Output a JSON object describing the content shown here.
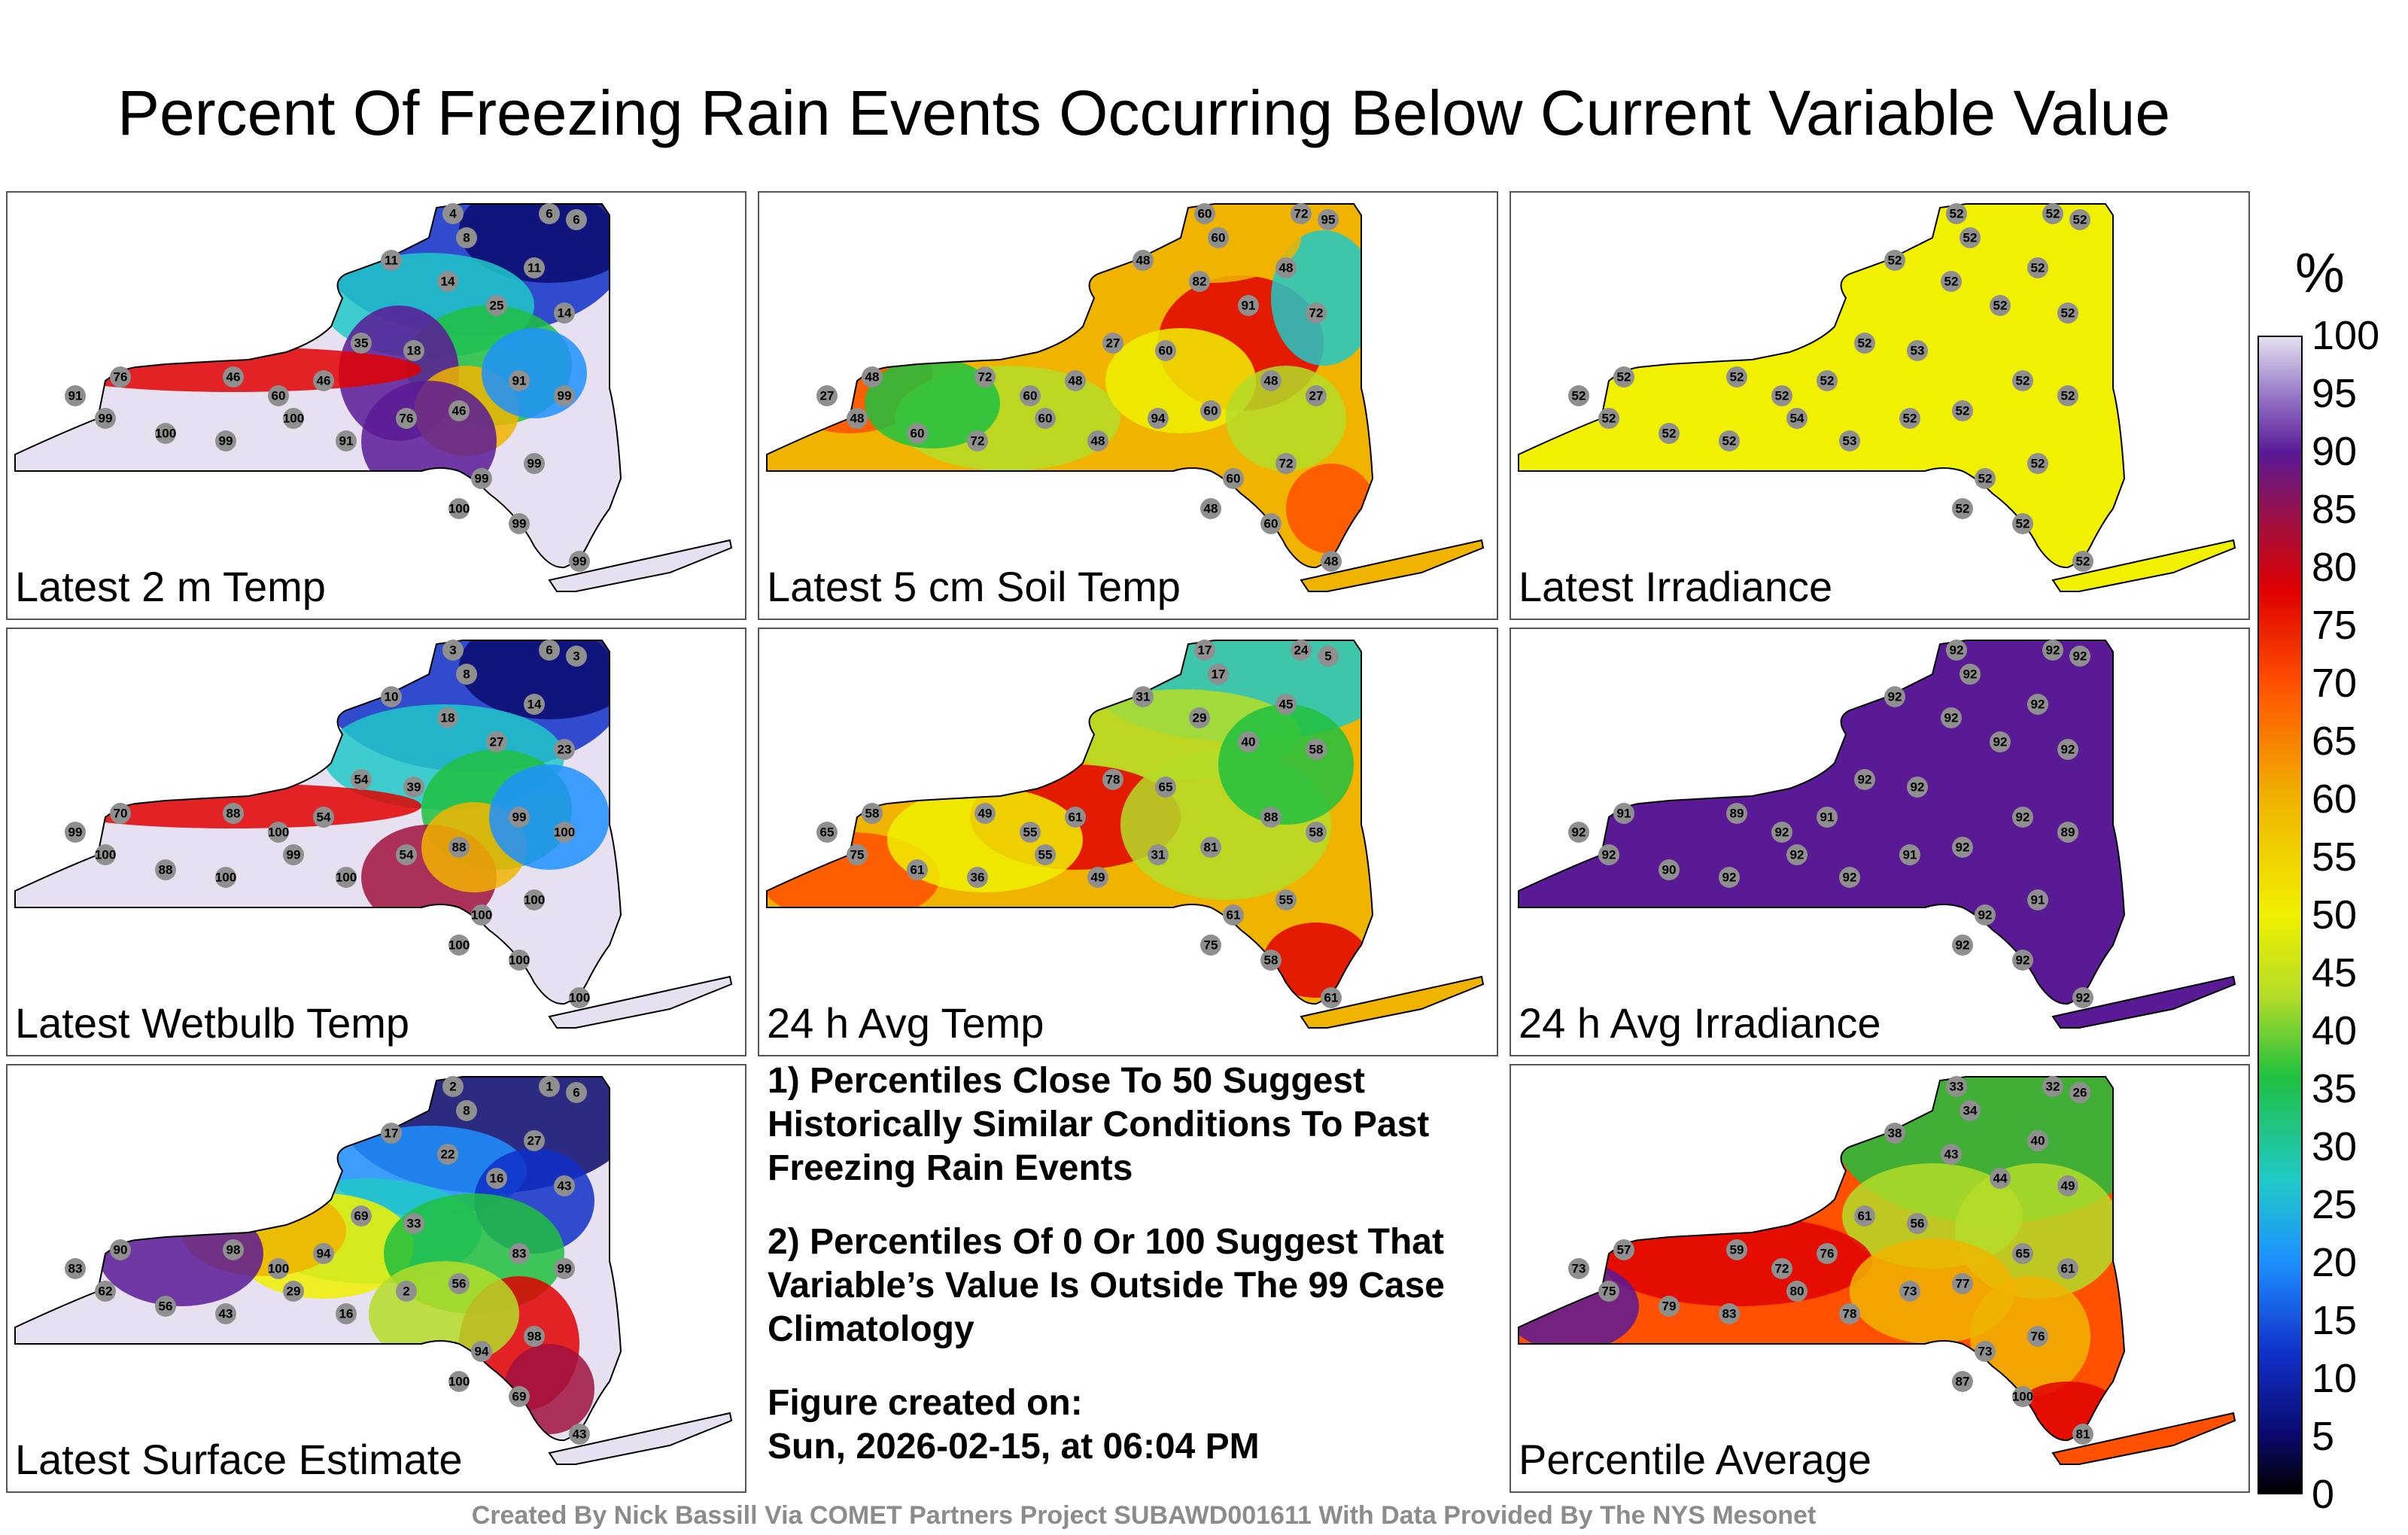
{
  "title": "Percent Of Freezing Rain Events Occurring Below Current Variable Value",
  "colorbar": {
    "unit": "%",
    "ticks": [
      "100",
      "95",
      "90",
      "85",
      "80",
      "75",
      "70",
      "65",
      "60",
      "55",
      "50",
      "45",
      "40",
      "35",
      "30",
      "25",
      "20",
      "15",
      "10",
      "5",
      "0"
    ],
    "range": [
      0,
      100
    ],
    "stops": [
      "#000000",
      "#0a0a6e",
      "#1030c8",
      "#1e90ff",
      "#20c8c8",
      "#20c040",
      "#b4dc28",
      "#f0f000",
      "#f0b400",
      "#ff5000",
      "#e00000",
      "#a01040",
      "#5a1a96",
      "#9678c8",
      "#e6e0f0"
    ]
  },
  "panels": [
    {
      "label": "Latest 2 m Temp",
      "scheme": "temp2m",
      "stations": [
        "4",
        "8",
        "6",
        "6",
        "11",
        "14",
        "25",
        "11",
        "14",
        "18",
        "35",
        "46",
        "60",
        "46",
        "76",
        "91",
        "99",
        "100",
        "99",
        "100",
        "91",
        "76",
        "46",
        "91",
        "99",
        "99",
        "99",
        "100",
        "99",
        "99"
      ]
    },
    {
      "label": "Latest 5 cm Soil Temp",
      "scheme": "soil",
      "stations": [
        "60",
        "60",
        "72",
        "95",
        "48",
        "82",
        "91",
        "48",
        "72",
        "60",
        "27",
        "48",
        "60",
        "72",
        "48",
        "27",
        "48",
        "60",
        "72",
        "60",
        "48",
        "94",
        "60",
        "48",
        "27",
        "60",
        "72",
        "48",
        "60",
        "48"
      ]
    },
    {
      "label": "Latest Irradiance",
      "scheme": "irr",
      "stations": [
        "52",
        "52",
        "52",
        "52",
        "52",
        "52",
        "52",
        "52",
        "52",
        "53",
        "52",
        "52",
        "52",
        "52",
        "52",
        "52",
        "52",
        "52",
        "52",
        "54",
        "53",
        "52",
        "52",
        "52",
        "52",
        "52",
        "52",
        "52",
        "52",
        "52"
      ]
    },
    {
      "label": "Latest Wetbulb Temp",
      "scheme": "wet",
      "stations": [
        "3",
        "8",
        "6",
        "3",
        "10",
        "18",
        "27",
        "14",
        "23",
        "39",
        "54",
        "54",
        "100",
        "88",
        "70",
        "99",
        "100",
        "88",
        "100",
        "99",
        "100",
        "54",
        "88",
        "99",
        "100",
        "100",
        "100",
        "100",
        "100",
        "100"
      ]
    },
    {
      "label": "24 h Avg Temp",
      "scheme": "avg24",
      "stations": [
        "17",
        "17",
        "24",
        "5",
        "31",
        "29",
        "40",
        "45",
        "58",
        "65",
        "78",
        "61",
        "55",
        "49",
        "58",
        "65",
        "75",
        "61",
        "36",
        "55",
        "49",
        "31",
        "81",
        "88",
        "58",
        "61",
        "55",
        "75",
        "58",
        "61"
      ]
    },
    {
      "label": "24 h Avg Irradiance",
      "scheme": "avgirr",
      "stations": [
        "92",
        "92",
        "92",
        "92",
        "92",
        "92",
        "92",
        "92",
        "92",
        "92",
        "92",
        "91",
        "92",
        "89",
        "91",
        "92",
        "92",
        "90",
        "92",
        "92",
        "92",
        "91",
        "92",
        "92",
        "89",
        "92",
        "91",
        "92",
        "92",
        "92"
      ]
    },
    {
      "label": "Latest Surface Estimate",
      "scheme": "sfc",
      "stations": [
        "2",
        "8",
        "1",
        "6",
        "17",
        "22",
        "16",
        "27",
        "43",
        "33",
        "69",
        "94",
        "100",
        "98",
        "90",
        "83",
        "62",
        "56",
        "43",
        "29",
        "16",
        "2",
        "56",
        "83",
        "99",
        "94",
        "98",
        "100",
        "69",
        "43"
      ]
    },
    {
      "label": "Percentile Average",
      "scheme": "pavg",
      "stations": [
        "33",
        "34",
        "32",
        "26",
        "38",
        "43",
        "44",
        "40",
        "49",
        "56",
        "61",
        "76",
        "72",
        "59",
        "57",
        "73",
        "75",
        "79",
        "83",
        "80",
        "78",
        "73",
        "77",
        "65",
        "61",
        "73",
        "76",
        "87",
        "100",
        "81"
      ]
    }
  ],
  "notes": [
    "1) Percentiles Close To 50 Suggest Historically Similar Conditions To Past Freezing Rain Events",
    "2) Percentiles Of 0 Or 100 Suggest That Variable’s Value Is Outside The 99 Case Climatology"
  ],
  "figure_created_label": "Figure created on:",
  "figure_created_date": "Sun, 2026-02-15, at 06:04 PM",
  "footer": "Created By Nick Bassill Via COMET Partners Project SUBAWD001611 With Data Provided By The NYS Mesonet"
}
